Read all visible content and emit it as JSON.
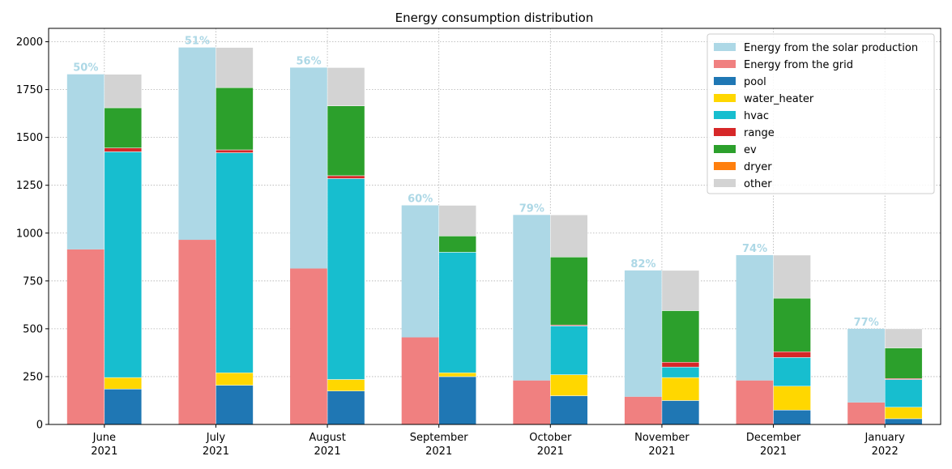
{
  "chart_data": {
    "type": "bar",
    "title": "Energy consumption distribution",
    "xlabel": "",
    "ylabel": "",
    "ylim": [
      0,
      2070
    ],
    "yticks": [
      0,
      250,
      500,
      750,
      1000,
      1250,
      1500,
      1750,
      2000
    ],
    "grid": true,
    "legend_position": "top-right",
    "categories": [
      [
        "June",
        "2021"
      ],
      [
        "July",
        "2021"
      ],
      [
        "August",
        "2021"
      ],
      [
        "September",
        "2021"
      ],
      [
        "October",
        "2021"
      ],
      [
        "November",
        "2021"
      ],
      [
        "December",
        "2021"
      ],
      [
        "January",
        "2022"
      ]
    ],
    "source_bars": {
      "total": [
        1830,
        1970,
        1865,
        1145,
        1095,
        805,
        885,
        500
      ],
      "grid": [
        915,
        965,
        815,
        455,
        230,
        145,
        230,
        115
      ],
      "solar_share_labels": [
        "50%",
        "51%",
        "56%",
        "60%",
        "79%",
        "82%",
        "74%",
        "77%"
      ],
      "series": [
        {
          "name": "Energy from the solar production",
          "color": "#add8e6"
        },
        {
          "name": "Energy from the grid",
          "color": "#f08080"
        }
      ]
    },
    "appliance_bars": {
      "series": [
        {
          "name": "pool",
          "color": "#1f77b4",
          "values": [
            185,
            205,
            175,
            250,
            150,
            125,
            75,
            30
          ]
        },
        {
          "name": "water_heater",
          "color": "#ffd700",
          "values": [
            60,
            65,
            60,
            20,
            110,
            120,
            125,
            60
          ]
        },
        {
          "name": "hvac",
          "color": "#17becf",
          "values": [
            1180,
            1150,
            1050,
            630,
            255,
            55,
            150,
            145
          ]
        },
        {
          "name": "range",
          "color": "#d62728",
          "values": [
            20,
            15,
            15,
            0,
            5,
            25,
            30,
            5
          ]
        },
        {
          "name": "ev",
          "color": "#2ca02c",
          "values": [
            210,
            325,
            365,
            85,
            355,
            270,
            280,
            160
          ]
        },
        {
          "name": "dryer",
          "color": "#ff7f0e",
          "values": [
            0,
            0,
            0,
            0,
            0,
            0,
            0,
            0
          ]
        },
        {
          "name": "other",
          "color": "#d3d3d3",
          "values": [
            175,
            210,
            200,
            160,
            220,
            210,
            225,
            100
          ]
        }
      ]
    }
  }
}
